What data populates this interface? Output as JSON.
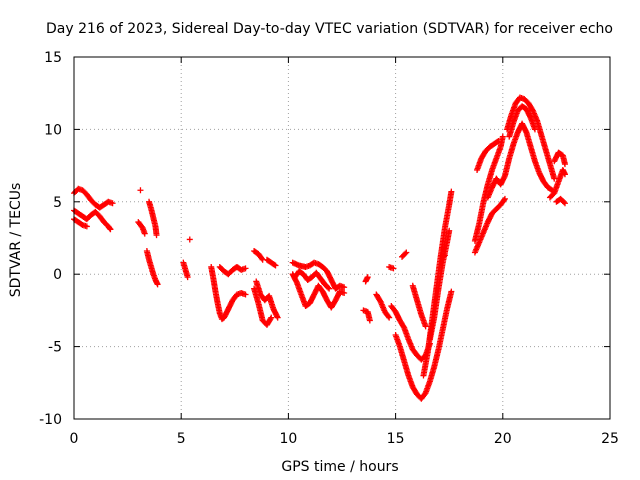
{
  "chart_data": {
    "type": "scatter",
    "title": "Day 216 of 2023, Sidereal Day-to-day VTEC variation (SDTVAR) for receiver echo",
    "xlabel": "GPS time / hours",
    "ylabel": "SDTVAR / TECUs",
    "xlim": [
      0,
      25
    ],
    "ylim": [
      -10,
      15
    ],
    "xticks": [
      "0",
      "5",
      "10",
      "15",
      "20",
      "25"
    ],
    "yticks": [
      "-10",
      "-5",
      "0",
      "5",
      "10",
      "15"
    ],
    "grid": true,
    "marker": "+",
    "color": "#ff0000",
    "series": [
      {
        "name": "SDTVAR",
        "segments": [
          [
            [
              0.0,
              5.6
            ],
            [
              0.2,
              5.9
            ],
            [
              0.4,
              5.8
            ],
            [
              0.6,
              5.5
            ],
            [
              0.8,
              5.1
            ],
            [
              1.0,
              4.8
            ],
            [
              1.2,
              4.6
            ],
            [
              1.4,
              4.8
            ],
            [
              1.6,
              5.0
            ],
            [
              1.8,
              4.9
            ]
          ],
          [
            [
              0.0,
              4.4
            ],
            [
              0.2,
              4.2
            ],
            [
              0.4,
              4.0
            ],
            [
              0.6,
              3.8
            ],
            [
              0.8,
              4.1
            ],
            [
              1.0,
              4.3
            ],
            [
              1.2,
              4.0
            ],
            [
              1.4,
              3.6
            ],
            [
              1.6,
              3.3
            ],
            [
              1.7,
              3.1
            ]
          ],
          [
            [
              0.0,
              3.8
            ],
            [
              0.2,
              3.6
            ],
            [
              0.4,
              3.4
            ],
            [
              0.6,
              3.3
            ]
          ],
          [
            [
              3.0,
              3.6
            ],
            [
              3.2,
              3.2
            ],
            [
              3.3,
              2.8
            ]
          ],
          [
            [
              3.5,
              5.0
            ],
            [
              3.6,
              4.5
            ],
            [
              3.7,
              3.9
            ],
            [
              3.8,
              3.3
            ],
            [
              3.85,
              2.7
            ]
          ],
          [
            [
              3.4,
              1.6
            ],
            [
              3.5,
              1.0
            ],
            [
              3.6,
              0.5
            ],
            [
              3.7,
              0.0
            ],
            [
              3.8,
              -0.4
            ],
            [
              3.9,
              -0.7
            ]
          ],
          [
            [
              5.4,
              2.4
            ]
          ],
          [
            [
              5.1,
              0.8
            ],
            [
              5.2,
              0.3
            ],
            [
              5.3,
              -0.2
            ]
          ],
          [
            [
              6.4,
              0.5
            ],
            [
              6.5,
              -0.3
            ],
            [
              6.6,
              -1.2
            ],
            [
              6.7,
              -2.0
            ],
            [
              6.8,
              -2.7
            ],
            [
              6.9,
              -3.1
            ],
            [
              7.0,
              -3.0
            ],
            [
              7.2,
              -2.4
            ],
            [
              7.4,
              -1.8
            ],
            [
              7.6,
              -1.4
            ],
            [
              7.8,
              -1.3
            ],
            [
              8.0,
              -1.4
            ]
          ],
          [
            [
              6.8,
              0.5
            ],
            [
              7.0,
              0.2
            ],
            [
              7.2,
              0.0
            ],
            [
              7.4,
              0.3
            ],
            [
              7.6,
              0.5
            ],
            [
              7.8,
              0.3
            ],
            [
              8.0,
              0.4
            ]
          ],
          [
            [
              8.4,
              1.6
            ],
            [
              8.6,
              1.4
            ],
            [
              8.8,
              1.0
            ]
          ],
          [
            [
              8.4,
              -1.0
            ],
            [
              8.6,
              -2.0
            ],
            [
              8.8,
              -3.2
            ],
            [
              9.0,
              -3.5
            ],
            [
              9.2,
              -3.0
            ]
          ],
          [
            [
              8.5,
              -0.5
            ],
            [
              8.7,
              -1.4
            ],
            [
              8.9,
              -1.8
            ],
            [
              9.1,
              -1.5
            ],
            [
              9.3,
              -2.4
            ],
            [
              9.5,
              -3.0
            ]
          ],
          [
            [
              9.0,
              1.0
            ],
            [
              9.2,
              0.8
            ],
            [
              9.4,
              0.6
            ]
          ],
          [
            [
              10.2,
              0.8
            ],
            [
              10.5,
              0.6
            ],
            [
              10.8,
              0.5
            ],
            [
              11.0,
              0.6
            ],
            [
              11.2,
              0.8
            ],
            [
              11.4,
              0.7
            ],
            [
              11.6,
              0.5
            ],
            [
              11.8,
              0.2
            ],
            [
              12.0,
              -0.4
            ],
            [
              12.2,
              -1.0
            ],
            [
              12.4,
              -0.8
            ],
            [
              12.6,
              -0.9
            ]
          ],
          [
            [
              10.2,
              0.0
            ],
            [
              10.4,
              -0.6
            ],
            [
              10.6,
              -1.4
            ],
            [
              10.8,
              -2.2
            ],
            [
              11.0,
              -2.0
            ],
            [
              11.2,
              -1.4
            ],
            [
              11.4,
              -0.8
            ],
            [
              11.6,
              -1.2
            ],
            [
              11.8,
              -1.8
            ],
            [
              12.0,
              -2.3
            ],
            [
              12.2,
              -1.8
            ],
            [
              12.4,
              -1.2
            ],
            [
              12.6,
              -1.3
            ]
          ],
          [
            [
              10.3,
              -0.2
            ],
            [
              10.5,
              0.2
            ],
            [
              10.7,
              0.0
            ],
            [
              10.9,
              -0.4
            ],
            [
              11.1,
              -0.2
            ],
            [
              11.3,
              0.1
            ],
            [
              11.5,
              -0.3
            ],
            [
              11.7,
              -0.7
            ],
            [
              11.9,
              -1.0
            ]
          ],
          [
            [
              13.5,
              -2.5
            ],
            [
              13.7,
              -2.6
            ],
            [
              13.8,
              -3.2
            ]
          ],
          [
            [
              13.6,
              -0.5
            ],
            [
              13.7,
              -0.2
            ]
          ],
          [
            [
              14.1,
              -1.4
            ],
            [
              14.3,
              -1.9
            ],
            [
              14.5,
              -2.6
            ],
            [
              14.7,
              -3.0
            ]
          ],
          [
            [
              14.8,
              -2.2
            ],
            [
              15.0,
              -2.6
            ],
            [
              15.2,
              -3.2
            ],
            [
              15.4,
              -3.7
            ],
            [
              15.6,
              -4.5
            ],
            [
              15.8,
              -5.2
            ],
            [
              16.0,
              -5.6
            ],
            [
              16.2,
              -5.9
            ],
            [
              16.4,
              -5.6
            ],
            [
              16.6,
              -4.8
            ]
          ],
          [
            [
              15.0,
              -4.2
            ],
            [
              15.2,
              -5.0
            ],
            [
              15.4,
              -6.0
            ],
            [
              15.6,
              -7.0
            ],
            [
              15.8,
              -7.8
            ],
            [
              16.0,
              -8.3
            ],
            [
              16.2,
              -8.6
            ],
            [
              16.4,
              -8.2
            ],
            [
              16.6,
              -7.4
            ],
            [
              16.8,
              -6.4
            ],
            [
              17.0,
              -5.2
            ],
            [
              17.2,
              -3.8
            ],
            [
              17.4,
              -2.4
            ],
            [
              17.6,
              -1.2
            ]
          ],
          [
            [
              16.3,
              -7.0
            ],
            [
              16.5,
              -5.4
            ],
            [
              16.7,
              -3.2
            ],
            [
              16.9,
              -1.0
            ],
            [
              17.1,
              1.2
            ],
            [
              17.3,
              3.2
            ],
            [
              17.5,
              4.8
            ],
            [
              17.6,
              5.7
            ]
          ],
          [
            [
              16.6,
              -4.5
            ],
            [
              16.8,
              -3.0
            ],
            [
              17.0,
              -1.0
            ],
            [
              17.2,
              0.8
            ],
            [
              17.4,
              2.2
            ],
            [
              17.5,
              3.0
            ]
          ],
          [
            [
              15.3,
              1.2
            ],
            [
              15.5,
              1.5
            ]
          ],
          [
            [
              14.7,
              0.5
            ],
            [
              14.9,
              0.4
            ]
          ],
          [
            [
              15.8,
              -0.8
            ],
            [
              16.0,
              -1.8
            ],
            [
              16.2,
              -2.8
            ],
            [
              16.4,
              -3.6
            ]
          ],
          [
            [
              17.2,
              1.2
            ],
            [
              17.3,
              1.3
            ]
          ],
          [
            [
              18.7,
              1.5
            ],
            [
              18.9,
              2.2
            ],
            [
              19.1,
              2.9
            ],
            [
              19.3,
              3.6
            ],
            [
              19.5,
              4.2
            ],
            [
              19.7,
              4.5
            ],
            [
              19.9,
              4.8
            ],
            [
              20.1,
              5.2
            ]
          ],
          [
            [
              18.7,
              2.3
            ],
            [
              18.9,
              3.5
            ],
            [
              19.1,
              5.0
            ],
            [
              19.3,
              6.2
            ],
            [
              19.5,
              7.2
            ],
            [
              19.7,
              8.0
            ],
            [
              19.9,
              8.8
            ],
            [
              20.0,
              9.5
            ]
          ],
          [
            [
              18.8,
              7.2
            ],
            [
              19.0,
              8.0
            ],
            [
              19.2,
              8.5
            ],
            [
              19.4,
              8.8
            ],
            [
              19.6,
              9.0
            ],
            [
              19.8,
              9.2
            ]
          ],
          [
            [
              19.3,
              5.3
            ],
            [
              19.5,
              6.0
            ],
            [
              19.7,
              6.6
            ],
            [
              19.9,
              6.2
            ],
            [
              20.1,
              6.8
            ],
            [
              20.3,
              8.0
            ],
            [
              20.5,
              9.0
            ],
            [
              20.7,
              9.8
            ],
            [
              20.9,
              10.4
            ],
            [
              21.1,
              9.8
            ],
            [
              21.3,
              8.8
            ],
            [
              21.5,
              7.8
            ],
            [
              21.7,
              7.0
            ],
            [
              21.9,
              6.4
            ],
            [
              22.1,
              6.0
            ],
            [
              22.3,
              5.8
            ]
          ],
          [
            [
              20.2,
              10.0
            ],
            [
              20.4,
              11.0
            ],
            [
              20.6,
              11.8
            ],
            [
              20.8,
              12.2
            ],
            [
              21.0,
              12.1
            ],
            [
              21.2,
              11.8
            ],
            [
              21.4,
              11.3
            ],
            [
              21.6,
              10.6
            ],
            [
              21.8,
              9.6
            ],
            [
              22.0,
              8.6
            ],
            [
              22.2,
              7.6
            ],
            [
              22.4,
              6.6
            ]
          ],
          [
            [
              20.3,
              9.5
            ],
            [
              20.5,
              10.5
            ],
            [
              20.7,
              11.3
            ],
            [
              20.9,
              11.6
            ],
            [
              21.1,
              11.4
            ],
            [
              21.3,
              10.8
            ],
            [
              21.5,
              10.0
            ]
          ],
          [
            [
              22.2,
              5.3
            ],
            [
              22.4,
              5.6
            ],
            [
              22.6,
              6.4
            ],
            [
              22.8,
              7.2
            ],
            [
              22.9,
              6.9
            ]
          ],
          [
            [
              22.4,
              7.8
            ],
            [
              22.6,
              8.4
            ],
            [
              22.8,
              8.2
            ],
            [
              22.9,
              7.6
            ]
          ],
          [
            [
              22.5,
              5.0
            ],
            [
              22.7,
              5.2
            ],
            [
              22.9,
              4.9
            ]
          ],
          [
            [
              3.1,
              5.8
            ]
          ]
        ]
      }
    ]
  }
}
